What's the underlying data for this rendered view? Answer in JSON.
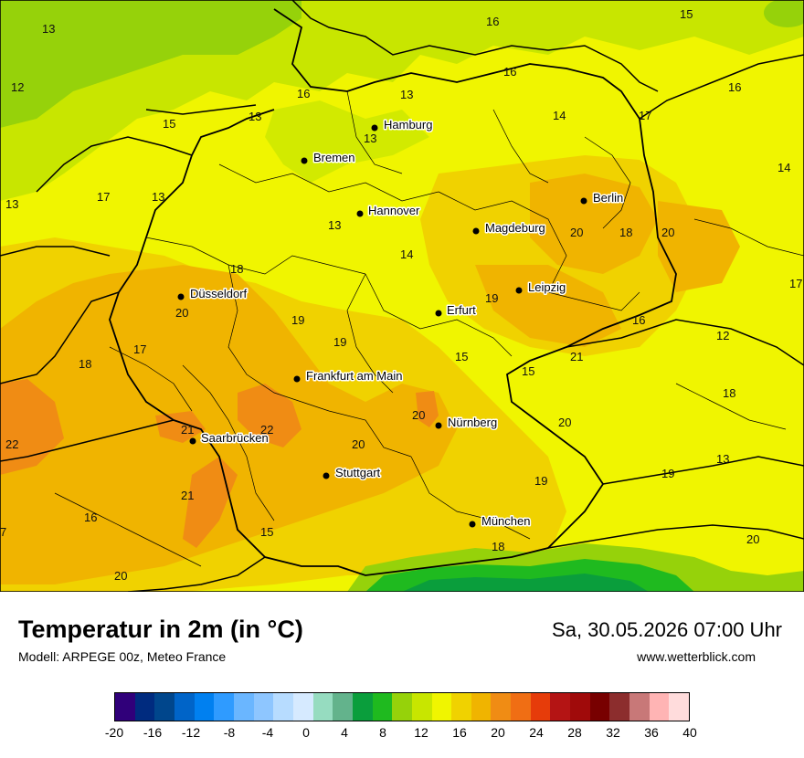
{
  "map": {
    "cities": [
      {
        "name": "Hamburg"
      },
      {
        "name": "Bremen"
      },
      {
        "name": "Hannover"
      },
      {
        "name": "Berlin"
      },
      {
        "name": "Magdeburg"
      },
      {
        "name": "Düsseldorf"
      },
      {
        "name": "Leipzig"
      },
      {
        "name": "Erfurt"
      },
      {
        "name": "Frankfurt am Main"
      },
      {
        "name": "Nürnberg"
      },
      {
        "name": "Saarbrücken"
      },
      {
        "name": "Stuttgart"
      },
      {
        "name": "München"
      }
    ],
    "temperatures": [
      "13",
      "16",
      "15",
      "12",
      "16",
      "13",
      "16",
      "14",
      "17",
      "15",
      "13",
      "13",
      "16",
      "14",
      "17",
      "13",
      "13",
      "13",
      "14",
      "20",
      "18",
      "20",
      "18",
      "17",
      "20",
      "19",
      "19",
      "19",
      "16",
      "12",
      "17",
      "15",
      "15",
      "21",
      "18",
      "18",
      "20",
      "20",
      "21",
      "22",
      "22",
      "20",
      "13",
      "19",
      "19",
      "21",
      "16",
      "15",
      "20",
      "18",
      "20",
      "7"
    ]
  },
  "footer": {
    "title": "Temperatur in 2m (in °C)",
    "model": "Modell: ARPEGE 00z, Meteo France",
    "datetime": "Sa, 30.05.2026 07:00 Uhr",
    "website": "www.wetterblick.com"
  },
  "legend": {
    "colors": [
      "#30007a",
      "#002b7f",
      "#00468c",
      "#0064c8",
      "#0080f0",
      "#2f9bff",
      "#6ab6ff",
      "#8ec6ff",
      "#b7dcff",
      "#d6eaff",
      "#96dcc0",
      "#63b38c",
      "#0a9e3c",
      "#1fba1f",
      "#96d20a",
      "#c8e600",
      "#f0f500",
      "#f0d200",
      "#f0b400",
      "#f08c14",
      "#f06e14",
      "#e63c0a",
      "#b41414",
      "#a00a0a",
      "#780000",
      "#8c2d2d",
      "#c87878",
      "#ffb4b4",
      "#ffdcdc"
    ],
    "ticks": [
      "-20",
      "-16",
      "-12",
      "-8",
      "-4",
      "0",
      "4",
      "8",
      "12",
      "16",
      "20",
      "24",
      "28",
      "32",
      "36",
      "40"
    ]
  }
}
